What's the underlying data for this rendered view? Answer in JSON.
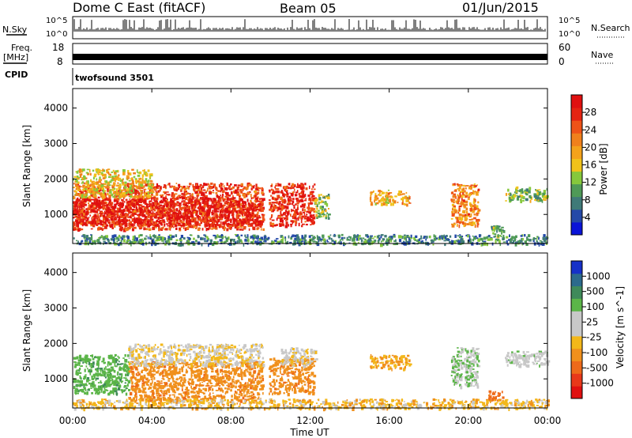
{
  "header": {
    "station": "Dome C East (fitACF)",
    "beam": "Beam 05",
    "date": "01/Jun/2015"
  },
  "status_panels": {
    "nsky_label": "N.Sky",
    "nsky_ticks": [
      "10^5",
      "10^0"
    ],
    "nsearch_label": "N.Search",
    "nsearch_ticks": [
      "10^5",
      "10^0"
    ],
    "freq_label_1": "Freq.",
    "freq_label_2": "[MHz]",
    "freq_ticks": [
      "18",
      "8"
    ],
    "nave_label": "Nave",
    "nave_ticks": [
      "60",
      "0"
    ],
    "cpid_label": "CPID",
    "cpid_value": "twofsound 3501"
  },
  "axes": {
    "xlabel": "Time UT",
    "ylabel": "Slant Range [km]",
    "xticks": [
      "00:00",
      "04:00",
      "08:00",
      "12:00",
      "16:00",
      "20:00",
      "00:00"
    ],
    "yticks": [
      "1000",
      "2000",
      "3000",
      "4000"
    ]
  },
  "colorbars": {
    "power": {
      "label": "Power [dB]",
      "ticks": [
        "4",
        "8",
        "12",
        "16",
        "20",
        "24",
        "28"
      ],
      "colors": [
        "#0a14d8",
        "#2449a8",
        "#3f7a78",
        "#4f9a57",
        "#86c83c",
        "#f0c21a",
        "#f4a21b",
        "#f0801c",
        "#ee5318",
        "#e52412",
        "#e01010"
      ]
    },
    "velocity": {
      "label": "Velocity [m s^-1]",
      "ticks": [
        "1000",
        "500",
        "100",
        "25",
        "-25",
        "-100",
        "-500",
        "-1000"
      ],
      "colors": [
        "#1631c8",
        "#2c6a8c",
        "#3f8a5a",
        "#5bb548",
        "#c8c8c8",
        "#c8c8c8",
        "#f3b81a",
        "#f0901c",
        "#ee6a1a",
        "#e8381a",
        "#e01010"
      ]
    }
  },
  "chart_data": [
    {
      "type": "heatmap",
      "name": "power",
      "xlabel": "Time UT",
      "ylabel": "Slant Range [km]",
      "xlim": [
        0,
        24
      ],
      "ylim": [
        180,
        4550
      ],
      "colorbar_range": [
        0,
        30
      ],
      "regions": [
        {
          "t": [
            0.0,
            9.6
          ],
          "r": [
            600,
            1900
          ],
          "value": 24
        },
        {
          "t": [
            0.0,
            9.6
          ],
          "r": [
            700,
            1500
          ],
          "value": 28
        },
        {
          "t": [
            0.0,
            4.0
          ],
          "r": [
            1500,
            2300
          ],
          "value": 16
        },
        {
          "t": [
            9.9,
            12.2
          ],
          "r": [
            700,
            1900
          ],
          "value": 26
        },
        {
          "t": [
            12.2,
            12.9
          ],
          "r": [
            900,
            1600
          ],
          "value": 12
        },
        {
          "t": [
            15.0,
            17.0
          ],
          "r": [
            1300,
            1700
          ],
          "value": 18
        },
        {
          "t": [
            19.1,
            20.5
          ],
          "r": [
            700,
            1900
          ],
          "value": 20
        },
        {
          "t": [
            21.0,
            21.8
          ],
          "r": [
            400,
            700
          ],
          "value": 10
        },
        {
          "t": [
            21.8,
            24.0
          ],
          "r": [
            1400,
            1800
          ],
          "value": 12
        },
        {
          "t": [
            0.0,
            24.0
          ],
          "r": [
            180,
            450
          ],
          "value": 8
        }
      ]
    },
    {
      "type": "heatmap",
      "name": "velocity",
      "xlabel": "Time UT",
      "ylabel": "Slant Range [km]",
      "xlim": [
        0,
        24
      ],
      "ylim": [
        180,
        4550
      ],
      "regions": [
        {
          "t": [
            0.0,
            2.8
          ],
          "r": [
            600,
            1700
          ],
          "value": 200
        },
        {
          "t": [
            2.8,
            9.6
          ],
          "r": [
            400,
            1500
          ],
          "value": -200
        },
        {
          "t": [
            2.8,
            9.6
          ],
          "r": [
            1400,
            2000
          ],
          "value": 0
        },
        {
          "t": [
            9.9,
            12.2
          ],
          "r": [
            600,
            1600
          ],
          "value": -200
        },
        {
          "t": [
            10.5,
            12.3
          ],
          "r": [
            1400,
            1900
          ],
          "value": 0
        },
        {
          "t": [
            15.0,
            17.0
          ],
          "r": [
            1300,
            1700
          ],
          "value": -100
        },
        {
          "t": [
            19.1,
            20.5
          ],
          "r": [
            800,
            1900
          ],
          "value": 100
        },
        {
          "t": [
            21.0,
            21.8
          ],
          "r": [
            400,
            700
          ],
          "value": -300
        },
        {
          "t": [
            21.8,
            24.0
          ],
          "r": [
            1400,
            1800
          ],
          "value": 50
        },
        {
          "t": [
            0.0,
            24.0
          ],
          "r": [
            180,
            450
          ],
          "value": -60
        }
      ]
    }
  ]
}
